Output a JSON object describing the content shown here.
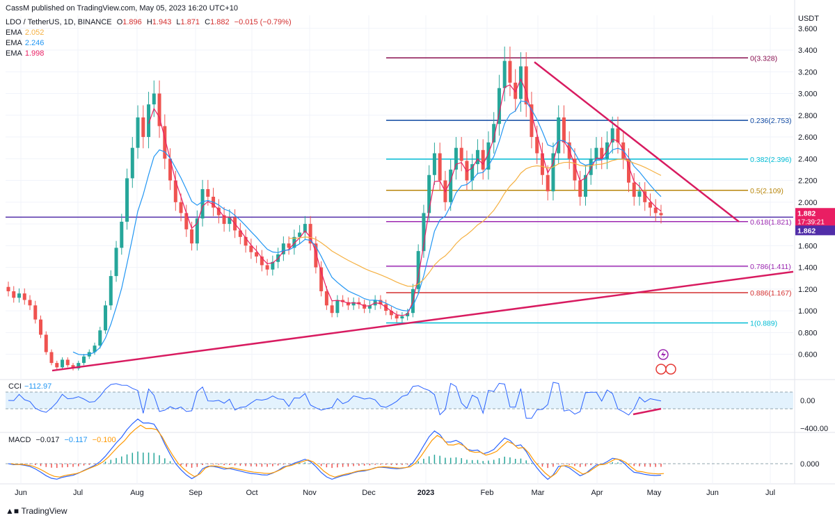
{
  "header": {
    "published": "CassM published on TradingView.com, May 05, 2023 16:20 UTC+10",
    "symbol": "LDO / TetherUS, 1D, BINANCE",
    "ohlc": [
      {
        "k": "O",
        "v": "1.896"
      },
      {
        "k": "H",
        "v": "1.943"
      },
      {
        "k": "L",
        "v": "1.871"
      },
      {
        "k": "C",
        "v": "1.882"
      }
    ],
    "change": "−0.015 (−0.79%)",
    "ema": [
      {
        "label": "EMA",
        "value": "2.052",
        "color": "#f5b041"
      },
      {
        "label": "EMA",
        "value": "2.246",
        "color": "#2196f3"
      },
      {
        "label": "EMA",
        "value": "1.998",
        "color": "#e91e63"
      }
    ]
  },
  "footer": {
    "brand": "TradingView"
  },
  "chart_data": {
    "type": "candlestick",
    "currency": "USDT",
    "y_ticks": [
      "3.600",
      "3.400",
      "3.200",
      "3.000",
      "2.800",
      "2.600",
      "2.400",
      "2.200",
      "2.000",
      "1.800",
      "1.600",
      "1.400",
      "1.200",
      "1.000",
      "0.800",
      "0.600"
    ],
    "ylim": [
      0.38,
      3.72
    ],
    "x_ticks": [
      "Jun",
      "Jul",
      "Aug",
      "Sep",
      "Oct",
      "Nov",
      "Dec",
      "2023",
      "Feb",
      "Mar",
      "Apr",
      "May",
      "Jun",
      "Jul"
    ],
    "price_tags": [
      {
        "text": "1.882",
        "sub": "17:39:21",
        "color": "#e91e63"
      },
      {
        "text": "1.862",
        "sub": "",
        "color": "#512da8"
      }
    ],
    "fib_levels": [
      {
        "label": "0(3.328)",
        "value": 3.328,
        "color": "#880e4f"
      },
      {
        "label": "0.236(2.753)",
        "value": 2.753,
        "color": "#0d47a1"
      },
      {
        "label": "0.382(2.396)",
        "value": 2.396,
        "color": "#00bcd4"
      },
      {
        "label": "0.5(2.109)",
        "value": 2.109,
        "color": "#b8860b"
      },
      {
        "label": "0.618(1.821)",
        "value": 1.821,
        "color": "#9c27b0"
      },
      {
        "label": "0.786(1.411)",
        "value": 1.411,
        "color": "#9c27b0"
      },
      {
        "label": "0.886(1.167)",
        "value": 1.167,
        "color": "#d32f2f"
      },
      {
        "label": "1(0.889)",
        "value": 0.889,
        "color": "#00bcd4"
      }
    ],
    "candles": [
      [
        1.22,
        1.18
      ],
      [
        1.18,
        1.12
      ],
      [
        1.12,
        1.16
      ],
      [
        1.16,
        1.1
      ],
      [
        1.1,
        1.05
      ],
      [
        1.05,
        0.92
      ],
      [
        0.92,
        0.78
      ],
      [
        0.78,
        0.62
      ],
      [
        0.62,
        0.52
      ],
      [
        0.52,
        0.48
      ],
      [
        0.48,
        0.55
      ],
      [
        0.55,
        0.5
      ],
      [
        0.5,
        0.47
      ],
      [
        0.47,
        0.52
      ],
      [
        0.52,
        0.58
      ],
      [
        0.58,
        0.62
      ],
      [
        0.62,
        0.68
      ],
      [
        0.68,
        0.82
      ],
      [
        0.82,
        1.05
      ],
      [
        1.05,
        1.32
      ],
      [
        1.32,
        1.58
      ],
      [
        1.58,
        1.82
      ],
      [
        1.82,
        2.22
      ],
      [
        2.22,
        2.5
      ],
      [
        2.5,
        2.78
      ],
      [
        2.78,
        2.6
      ],
      [
        2.6,
        2.9
      ],
      [
        2.9,
        3.0
      ],
      [
        3.0,
        2.7
      ],
      [
        2.7,
        2.4
      ],
      [
        2.4,
        2.2
      ],
      [
        2.2,
        2.0
      ],
      [
        2.0,
        1.9
      ],
      [
        1.9,
        1.75
      ],
      [
        1.75,
        1.62
      ],
      [
        1.62,
        1.85
      ],
      [
        1.85,
        2.12
      ],
      [
        2.12,
        2.05
      ],
      [
        2.05,
        1.95
      ],
      [
        1.95,
        1.88
      ],
      [
        1.88,
        1.8
      ],
      [
        1.8,
        1.86
      ],
      [
        1.86,
        1.74
      ],
      [
        1.74,
        1.68
      ],
      [
        1.68,
        1.6
      ],
      [
        1.6,
        1.54
      ],
      [
        1.54,
        1.5
      ],
      [
        1.5,
        1.42
      ],
      [
        1.42,
        1.38
      ],
      [
        1.38,
        1.45
      ],
      [
        1.45,
        1.52
      ],
      [
        1.52,
        1.62
      ],
      [
        1.62,
        1.58
      ],
      [
        1.58,
        1.68
      ],
      [
        1.68,
        1.72
      ],
      [
        1.72,
        1.8
      ],
      [
        1.8,
        1.62
      ],
      [
        1.62,
        1.4
      ],
      [
        1.4,
        1.18
      ],
      [
        1.18,
        1.05
      ],
      [
        1.05,
        0.98
      ],
      [
        0.98,
        1.1
      ],
      [
        1.1,
        1.08
      ],
      [
        1.08,
        1.05
      ],
      [
        1.05,
        1.08
      ],
      [
        1.08,
        1.06
      ],
      [
        1.06,
        1.02
      ],
      [
        1.02,
        1.05
      ],
      [
        1.05,
        1.1
      ],
      [
        1.1,
        1.06
      ],
      [
        1.06,
        1.0
      ],
      [
        1.0,
        0.96
      ],
      [
        0.96,
        0.93
      ],
      [
        0.93,
        0.95
      ],
      [
        0.95,
        0.98
      ],
      [
        0.98,
        1.2
      ],
      [
        1.2,
        1.55
      ],
      [
        1.55,
        1.9
      ],
      [
        1.9,
        2.25
      ],
      [
        2.25,
        2.45
      ],
      [
        2.45,
        2.2
      ],
      [
        2.2,
        2.0
      ],
      [
        2.0,
        2.3
      ],
      [
        2.3,
        2.5
      ],
      [
        2.5,
        2.38
      ],
      [
        2.38,
        2.2
      ],
      [
        2.2,
        2.35
      ],
      [
        2.35,
        2.48
      ],
      [
        2.48,
        2.3
      ],
      [
        2.3,
        2.55
      ],
      [
        2.55,
        2.72
      ],
      [
        2.72,
        3.05
      ],
      [
        3.05,
        3.3
      ],
      [
        3.3,
        3.1
      ],
      [
        3.1,
        2.95
      ],
      [
        2.95,
        3.25
      ],
      [
        3.25,
        2.9
      ],
      [
        2.9,
        2.6
      ],
      [
        2.6,
        2.45
      ],
      [
        2.45,
        2.25
      ],
      [
        2.25,
        2.1
      ],
      [
        2.1,
        2.45
      ],
      [
        2.45,
        2.78
      ],
      [
        2.78,
        2.55
      ],
      [
        2.55,
        2.4
      ],
      [
        2.4,
        2.2
      ],
      [
        2.2,
        2.05
      ],
      [
        2.05,
        2.25
      ],
      [
        2.25,
        2.4
      ],
      [
        2.4,
        2.5
      ],
      [
        2.5,
        2.4
      ],
      [
        2.4,
        2.55
      ],
      [
        2.55,
        2.68
      ],
      [
        2.68,
        2.55
      ],
      [
        2.55,
        2.4
      ],
      [
        2.4,
        2.18
      ],
      [
        2.18,
        2.05
      ],
      [
        2.05,
        2.1
      ],
      [
        2.1,
        2.0
      ],
      [
        2.0,
        1.95
      ],
      [
        1.95,
        1.9
      ],
      [
        1.9,
        1.88
      ]
    ]
  },
  "cci": {
    "label": "CCI",
    "value": "−112.97",
    "ticks": [
      "0.00",
      "−400.00"
    ]
  },
  "macd": {
    "label": "MACD",
    "values": [
      {
        "v": "−0.017",
        "color": "#131722"
      },
      {
        "v": "−0.117",
        "color": "#2196f3"
      },
      {
        "v": "−0.100",
        "color": "#ff9800"
      }
    ],
    "ticks": [
      "0.000"
    ]
  }
}
